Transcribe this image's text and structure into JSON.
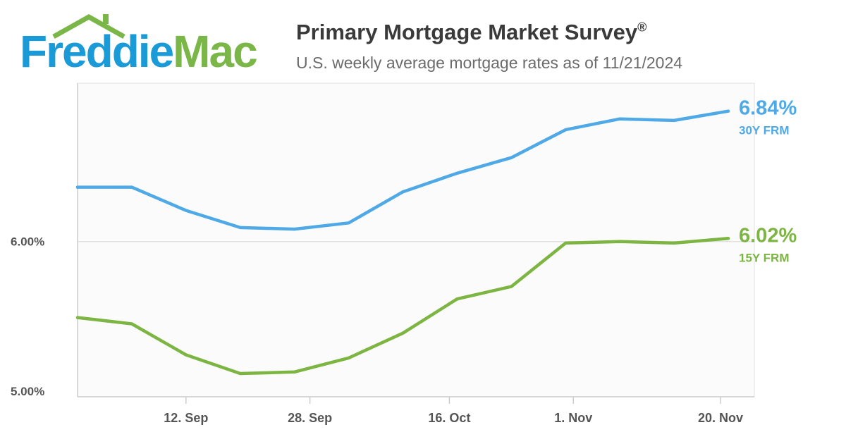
{
  "logo": {
    "part1": "Freddie",
    "part2": "Mac"
  },
  "header": {
    "title": "Primary Mortgage Market Survey",
    "title_mark": "®",
    "subtitle": "U.S. weekly average mortgage rates as of 11/21/2024"
  },
  "chart_data": {
    "type": "line",
    "title": "Primary Mortgage Market Survey®",
    "subtitle": "U.S. weekly average mortgage rates as of 11/21/2024",
    "x": [
      "2024-08-29",
      "2024-09-05",
      "2024-09-12",
      "2024-09-19",
      "2024-09-26",
      "2024-10-03",
      "2024-10-10",
      "2024-10-17",
      "2024-10-24",
      "2024-10-31",
      "2024-11-07",
      "2024-11-14",
      "2024-11-21"
    ],
    "series": [
      {
        "name": "30Y FRM",
        "end_label": "6.84%",
        "color": "#4ea9e6",
        "values": [
          6.35,
          6.35,
          6.2,
          6.09,
          6.08,
          6.12,
          6.32,
          6.44,
          6.54,
          6.72,
          6.79,
          6.78,
          6.84
        ]
      },
      {
        "name": "15Y FRM",
        "end_label": "6.02%",
        "color": "#7db543",
        "values": [
          5.51,
          5.47,
          5.27,
          5.15,
          5.16,
          5.25,
          5.41,
          5.63,
          5.71,
          5.99,
          6.0,
          5.99,
          6.02
        ]
      }
    ],
    "x_ticks": [
      {
        "date": "2024-09-12",
        "label": "12. Sep"
      },
      {
        "date": "2024-09-28",
        "label": "28. Sep"
      },
      {
        "date": "2024-10-16",
        "label": "16. Oct"
      },
      {
        "date": "2024-11-01",
        "label": "1. Nov"
      },
      {
        "date": "2024-11-20",
        "label": "20. Nov"
      }
    ],
    "y_ticks": [
      {
        "value": 5.0,
        "label": "5.00%"
      },
      {
        "value": 6.0,
        "label": "6.00%"
      }
    ],
    "ylim": [
      5.0,
      7.02
    ],
    "xlabel": "",
    "ylabel": "",
    "grid": true,
    "legend": "end-of-line labels, right"
  }
}
